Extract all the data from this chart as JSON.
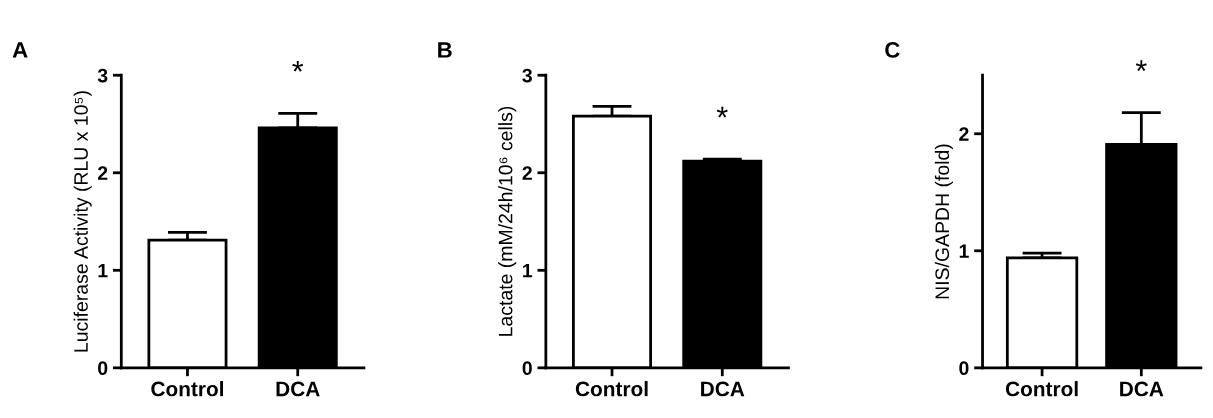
{
  "chart_data": [
    {
      "type": "bar",
      "title": "A",
      "ylabel": "Luciferase Activity (RLU x 10⁵)",
      "categories": [
        "Control",
        "DCA"
      ],
      "values": [
        1.31,
        2.46
      ],
      "errors": [
        0.08,
        0.15
      ],
      "colors": [
        "#ffffff",
        "#000000"
      ],
      "ylim": [
        0,
        3
      ],
      "yticks": [
        0,
        1,
        2,
        3
      ],
      "annotations": [
        "*"
      ]
    },
    {
      "type": "bar",
      "title": "B",
      "ylabel": "Lactate (mM/24h/10⁶ cells)",
      "categories": [
        "Control",
        "DCA"
      ],
      "values": [
        2.58,
        2.12
      ],
      "errors": [
        0.1,
        0.02
      ],
      "colors": [
        "#ffffff",
        "#000000"
      ],
      "ylim": [
        0,
        3
      ],
      "yticks": [
        0,
        1,
        2,
        3
      ],
      "annotations": [
        "*"
      ]
    },
    {
      "type": "bar",
      "title": "C",
      "ylabel": "NIS/GAPDH (fold)",
      "categories": [
        "Control",
        "DCA"
      ],
      "values": [
        0.94,
        1.91
      ],
      "errors": [
        0.04,
        0.27
      ],
      "colors": [
        "#ffffff",
        "#000000"
      ],
      "ylim": [
        0,
        2.5
      ],
      "yticks": [
        0,
        1,
        2
      ],
      "annotations": [
        "*"
      ]
    }
  ]
}
